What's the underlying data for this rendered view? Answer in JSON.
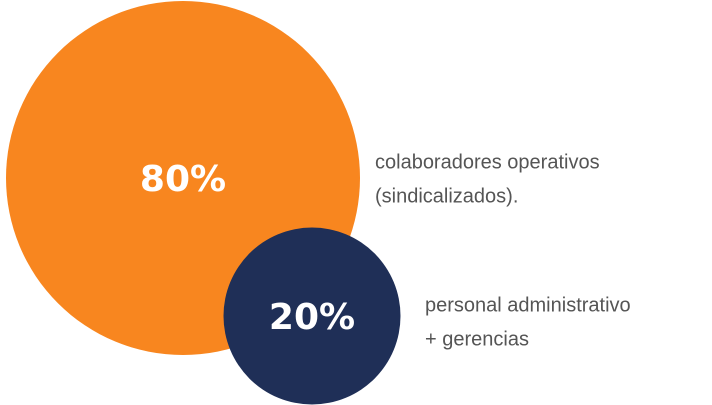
{
  "chart_data": {
    "type": "bubble",
    "values": [
      80,
      20
    ],
    "value_labels": [
      "80%",
      "20%"
    ],
    "categories": [
      [
        "colaboradores operativos",
        "(sindicalizados)."
      ],
      [
        "personal administrativo",
        "+ gerencias"
      ]
    ],
    "colors": [
      "#f8861f",
      "#1f2f57"
    ]
  }
}
